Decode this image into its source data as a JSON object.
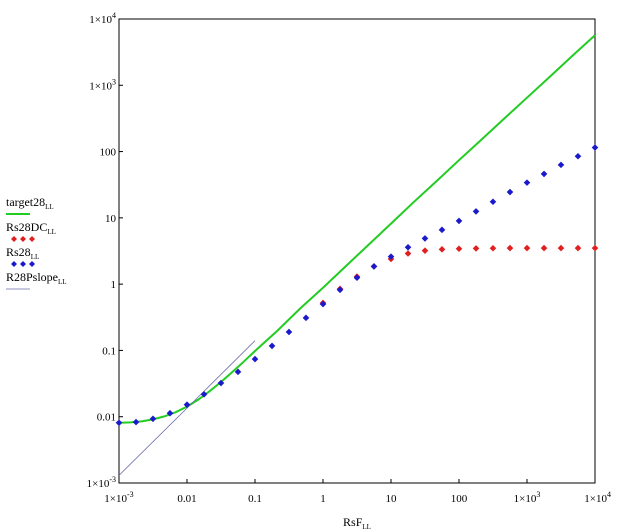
{
  "chart_data": {
    "type": "line",
    "xscale": "log",
    "yscale": "log",
    "xlim": [
      0.001,
      10000
    ],
    "ylim": [
      0.001,
      10000
    ],
    "xlabel": {
      "main": "RsF",
      "sub": "LL"
    },
    "ylabel": "",
    "x_ticks": [
      {
        "value": 0.001,
        "type": "exp",
        "exp": "-3"
      },
      {
        "value": 0.01,
        "type": "plain",
        "label": "0.01"
      },
      {
        "value": 0.1,
        "type": "plain",
        "label": "0.1"
      },
      {
        "value": 1,
        "type": "plain",
        "label": "1"
      },
      {
        "value": 10,
        "type": "plain",
        "label": "10"
      },
      {
        "value": 100,
        "type": "plain",
        "label": "100"
      },
      {
        "value": 1000,
        "type": "exp",
        "exp": "3"
      },
      {
        "value": 10000,
        "type": "exp",
        "exp": "4"
      }
    ],
    "y_ticks": [
      {
        "value": 0.001,
        "type": "exp",
        "exp": "-3"
      },
      {
        "value": 0.01,
        "type": "plain",
        "label": "0.01"
      },
      {
        "value": 0.1,
        "type": "plain",
        "label": "0.1"
      },
      {
        "value": 1,
        "type": "plain",
        "label": "1"
      },
      {
        "value": 10,
        "type": "plain",
        "label": "10"
      },
      {
        "value": 100,
        "type": "plain",
        "label": "100"
      },
      {
        "value": 1000,
        "type": "exp",
        "exp": "3"
      },
      {
        "value": 10000,
        "type": "exp",
        "exp": "4"
      }
    ],
    "tick_mantissa": "1×10",
    "grid": false,
    "legend_position": "left",
    "series": [
      {
        "name": "target28",
        "name_sub": "LL",
        "style": "line",
        "color": "#22cc22",
        "x": [
          0.001,
          0.00147,
          0.00215,
          0.00316,
          0.00464,
          0.00681,
          0.01,
          0.0147,
          0.0215,
          0.0316,
          0.0464,
          0.0681,
          0.1,
          0.215,
          0.464,
          1,
          2.15,
          4.64,
          10,
          21.5,
          46.4,
          100,
          215,
          464,
          1000,
          2154,
          4642,
          10000
        ],
        "y": [
          0.0081,
          0.0082,
          0.0085,
          0.0091,
          0.0101,
          0.0117,
          0.0142,
          0.0182,
          0.0243,
          0.0334,
          0.0472,
          0.0675,
          0.098,
          0.2,
          0.43,
          0.88,
          1.85,
          3.9,
          8.2,
          17.2,
          35.5,
          74,
          152,
          315,
          650,
          1340,
          2780,
          5700
        ]
      },
      {
        "name": "Rs28DC",
        "name_sub": "LL",
        "style": "markers",
        "color": "#e02020",
        "x": [
          1,
          1.78,
          3.16,
          5.62,
          10,
          17.8,
          31.6,
          56.2,
          100,
          178,
          316,
          562,
          1000,
          1780,
          3160,
          5620,
          10000
        ],
        "y": [
          0.52,
          0.85,
          1.3,
          1.85,
          2.4,
          2.9,
          3.2,
          3.35,
          3.42,
          3.46,
          3.48,
          3.5,
          3.5,
          3.5,
          3.5,
          3.5,
          3.5
        ]
      },
      {
        "name": "Rs28",
        "name_sub": "LL",
        "style": "markers",
        "color": "#1a1acc",
        "x": [
          0.001,
          0.00178,
          0.00316,
          0.00562,
          0.01,
          0.0178,
          0.0316,
          0.0562,
          0.1,
          0.178,
          0.316,
          0.562,
          1,
          1.78,
          3.16,
          5.62,
          10,
          17.8,
          31.6,
          56.2,
          100,
          178,
          316,
          562,
          1000,
          1780,
          3160,
          5620,
          10000
        ],
        "y": [
          0.0081,
          0.0083,
          0.0093,
          0.0113,
          0.0152,
          0.0218,
          0.0322,
          0.0475,
          0.074,
          0.117,
          0.19,
          0.31,
          0.5,
          0.82,
          1.25,
          1.85,
          2.6,
          3.6,
          4.9,
          6.6,
          9.0,
          12.5,
          17.5,
          24.5,
          34,
          46,
          63,
          85,
          115
        ]
      },
      {
        "name": "R28Pslope",
        "name_sub": "LL",
        "style": "thin-line",
        "color": "#6a6aaa",
        "x": [
          0.001,
          0.01,
          0.1
        ],
        "y": [
          0.0013,
          0.0135,
          0.14
        ]
      }
    ]
  }
}
